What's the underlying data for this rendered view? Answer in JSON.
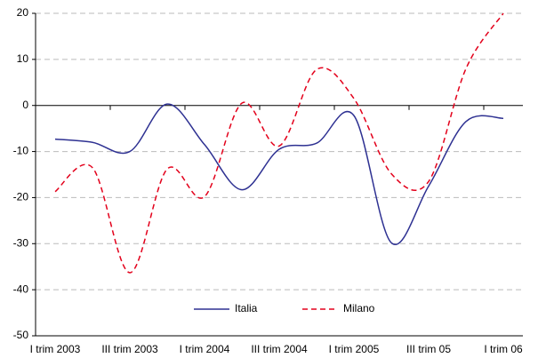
{
  "chart_data": {
    "type": "line",
    "categories": [
      "I trim 2003",
      null,
      "III trim 2003",
      null,
      "I trim 2004",
      null,
      "III trim 2004",
      null,
      "I trim 2005",
      null,
      "III trim 05",
      null,
      "I trim 06"
    ],
    "series": [
      {
        "name": "Italia",
        "color": "#2e3192",
        "values": [
          -7.3,
          -8,
          -10,
          0.3,
          -8.5,
          -18.3,
          -9.5,
          -8.2,
          -2.2,
          -29.8,
          -17.5,
          -3.5,
          -2.8
        ]
      },
      {
        "name": "Milano",
        "color": "#e3001b",
        "values": [
          -18.7,
          -13.5,
          -36.3,
          -13.8,
          -19.8,
          0.5,
          -8.8,
          7.8,
          1.5,
          -14.8,
          -16.5,
          8,
          20
        ]
      }
    ],
    "ylim": [
      -50,
      20
    ],
    "yticks": [
      -50,
      -40,
      -30,
      -20,
      -10,
      0,
      10,
      20
    ],
    "grid": true
  }
}
